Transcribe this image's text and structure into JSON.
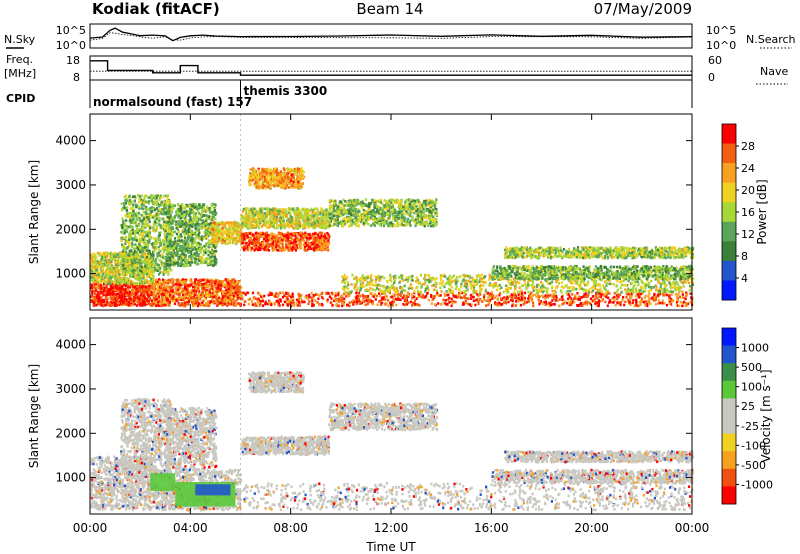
{
  "header": {
    "station": "Kodiak (fitACF)",
    "beam": "Beam 14",
    "date": "07/May/2009"
  },
  "chart_data": [
    {
      "id": "noise-panel",
      "type": "line",
      "left_label": "N.Sky",
      "right_label": "N.Search",
      "left_ticks": [
        "10^5",
        "10^0"
      ],
      "right_ticks": [
        "10^5",
        "10^0"
      ],
      "x": [
        0,
        0.5,
        0.8,
        1.0,
        1.3,
        1.6,
        2.0,
        2.5,
        3.0,
        3.3,
        3.6,
        4.0,
        4.5,
        5.0,
        6.0,
        8.0,
        10.0,
        12.0,
        14.0,
        16.0,
        18.0,
        20.0,
        22.0,
        24.0
      ],
      "series": [
        {
          "key": "nsky",
          "values": [
            0.4,
            0.5,
            0.7,
            0.8,
            0.65,
            0.55,
            0.55,
            0.5,
            0.5,
            0.35,
            0.4,
            0.5,
            0.5,
            0.5,
            0.5,
            0.52,
            0.5,
            0.52,
            0.5,
            0.5,
            0.48,
            0.5,
            0.5,
            0.5
          ]
        },
        {
          "key": "nsearch",
          "values": [
            0.35,
            0.45,
            0.6,
            0.65,
            0.55,
            0.5,
            0.5,
            0.45,
            0.45,
            0.3,
            0.35,
            0.45,
            0.45,
            0.45,
            0.45,
            0.46,
            0.45,
            0.46,
            0.45,
            0.45,
            0.44,
            0.45,
            0.45,
            0.45
          ]
        }
      ]
    },
    {
      "id": "freq-panel",
      "type": "line",
      "left_label": "Freq.",
      "left_unit": "[MHz]",
      "right_label": "Nave",
      "left_ticks": [
        "18",
        "8"
      ],
      "right_ticks": [
        "60",
        "0"
      ],
      "cpid_label": "CPID",
      "cpid_segments": [
        {
          "start_hour": 0,
          "text": "normalsound (fast) 157"
        },
        {
          "start_hour": 6,
          "text": "themis 3300"
        }
      ],
      "freq_steps": [
        {
          "from": 0,
          "to": 0.7,
          "value": 16
        },
        {
          "from": 0.7,
          "to": 2.5,
          "value": 12
        },
        {
          "from": 2.5,
          "to": 3.6,
          "value": 11
        },
        {
          "from": 3.6,
          "to": 4.3,
          "value": 14
        },
        {
          "from": 4.3,
          "to": 6.0,
          "value": 11
        },
        {
          "from": 6.0,
          "to": 24,
          "value": 10
        }
      ],
      "nave_level": 22
    },
    {
      "id": "power-panel",
      "type": "heatmap",
      "ylabel": "Slant Range [km]",
      "yticks": [
        1000,
        2000,
        3000,
        4000
      ],
      "ylim": [
        180,
        4600
      ],
      "xlim": [
        0,
        24
      ],
      "colorbar_label": "Power [dB]",
      "colorbar_ticks": [
        "28",
        "24",
        "20",
        "16",
        "12",
        "8",
        "4"
      ],
      "scatter_bands": [
        {
          "t0": 0.0,
          "t1": 2.5,
          "r0": 300,
          "r1": 800,
          "level": 0.95
        },
        {
          "t0": 0.0,
          "t1": 2.5,
          "r0": 800,
          "r1": 1500,
          "level": 0.55
        },
        {
          "t0": 1.2,
          "t1": 3.2,
          "r0": 1000,
          "r1": 2800,
          "level": 0.45
        },
        {
          "t0": 2.5,
          "t1": 6.0,
          "r0": 300,
          "r1": 900,
          "level": 0.85
        },
        {
          "t0": 3.0,
          "t1": 5.0,
          "r0": 1200,
          "r1": 2600,
          "level": 0.4
        },
        {
          "t0": 4.8,
          "t1": 6.0,
          "r0": 1700,
          "r1": 2200,
          "level": 0.65
        },
        {
          "t0": 6.0,
          "t1": 9.5,
          "r0": 1550,
          "r1": 1950,
          "level": 0.9
        },
        {
          "t0": 6.0,
          "t1": 9.5,
          "r0": 2050,
          "r1": 2500,
          "level": 0.55
        },
        {
          "t0": 9.5,
          "t1": 13.8,
          "r0": 2100,
          "r1": 2700,
          "level": 0.45
        },
        {
          "t0": 6.3,
          "t1": 8.5,
          "r0": 2950,
          "r1": 3400,
          "level": 0.75
        },
        {
          "t0": 6.0,
          "t1": 24.0,
          "r0": 300,
          "r1": 600,
          "level": 0.9
        },
        {
          "t0": 10.0,
          "t1": 24.0,
          "r0": 600,
          "r1": 1000,
          "level": 0.55
        },
        {
          "t0": 16.0,
          "t1": 24.0,
          "r0": 900,
          "r1": 1200,
          "level": 0.4
        },
        {
          "t0": 16.5,
          "t1": 24.0,
          "r0": 1380,
          "r1": 1620,
          "level": 0.5
        }
      ]
    },
    {
      "id": "velocity-panel",
      "type": "heatmap",
      "ylabel": "Slant Range [km]",
      "yticks": [
        1000,
        2000,
        3000,
        4000
      ],
      "ylim": [
        180,
        4600
      ],
      "xlim": [
        0,
        24
      ],
      "xlabel": "Time UT",
      "xtick_labels": [
        "00:00",
        "04:00",
        "08:00",
        "12:00",
        "16:00",
        "20:00",
        "00:00"
      ],
      "colorbar_label": "Velocity [m s⁻¹]",
      "colorbar_ticks": [
        "1000",
        "500",
        "100",
        "25",
        "-25",
        "-100",
        "-500",
        "-1000"
      ],
      "scatter_bands": [
        {
          "t0": 0.0,
          "t1": 2.5,
          "r0": 300,
          "r1": 1500,
          "level": 0.5
        },
        {
          "t0": 1.2,
          "t1": 3.2,
          "r0": 1000,
          "r1": 2800,
          "level": 0.5
        },
        {
          "t0": 2.5,
          "t1": 6.0,
          "r0": 300,
          "r1": 1200,
          "level": 0.5
        },
        {
          "t0": 3.0,
          "t1": 5.0,
          "r0": 1200,
          "r1": 2600,
          "level": 0.5
        },
        {
          "t0": 6.0,
          "t1": 9.5,
          "r0": 1550,
          "r1": 1950,
          "level": 0.5
        },
        {
          "t0": 9.5,
          "t1": 13.8,
          "r0": 2100,
          "r1": 2700,
          "level": 0.5
        },
        {
          "t0": 6.3,
          "t1": 8.5,
          "r0": 2950,
          "r1": 3400,
          "level": 0.5
        },
        {
          "t0": 6.0,
          "t1": 24.0,
          "r0": 300,
          "r1": 900,
          "level": 0.5
        },
        {
          "t0": 16.0,
          "t1": 24.0,
          "r0": 900,
          "r1": 1200,
          "level": 0.5
        },
        {
          "t0": 16.5,
          "t1": 24.0,
          "r0": 1380,
          "r1": 1620,
          "level": 0.5
        }
      ],
      "feature_blocks": [
        {
          "t0": 3.4,
          "t1": 5.8,
          "r0": 350,
          "r1": 900,
          "level": 0.62
        },
        {
          "t0": 2.4,
          "t1": 3.4,
          "r0": 700,
          "r1": 1100,
          "level": 0.7
        },
        {
          "t0": 4.2,
          "t1": 5.6,
          "r0": 600,
          "r1": 850,
          "level": 0.85
        }
      ]
    }
  ],
  "colors": {
    "power_scale": [
      "#0018ff",
      "#2255cc",
      "#3a7f3a",
      "#5aa55a",
      "#a8d838",
      "#f0d020",
      "#f8a020",
      "#f06010",
      "#ff0000"
    ],
    "velocity_scale": [
      "#ff0000",
      "#f05010",
      "#f8a020",
      "#f0d020",
      "#c8c8c0",
      "#c8c8c0",
      "#5ac83a",
      "#3a8f4a",
      "#2255cc",
      "#0018ff"
    ],
    "line": "#000000"
  }
}
